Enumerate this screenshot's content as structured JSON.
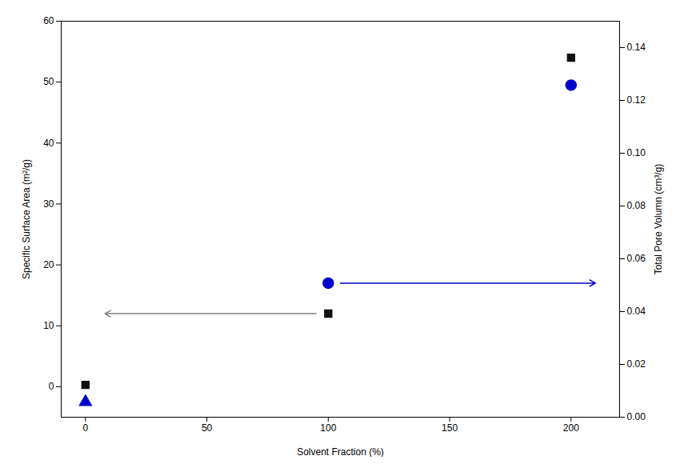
{
  "chart_data": {
    "type": "scatter",
    "xlabel": "Solvent Fraction (%)",
    "ylabel": "Specific Surface Area (m²/g)",
    "y2label": "Total Pore Volumn (cm³/g)",
    "xlim": [
      -10,
      220
    ],
    "xticks": [
      0,
      50,
      100,
      150,
      200
    ],
    "ylim": [
      -5,
      60
    ],
    "yticks": [
      0,
      10,
      20,
      30,
      40,
      50,
      60
    ],
    "y2lim": [
      0.0,
      0.15
    ],
    "y2ticks": [
      {
        "value": 0.0,
        "label": "0.00"
      },
      {
        "value": 0.02,
        "label": "0.02"
      },
      {
        "value": 0.04,
        "label": "0.04"
      },
      {
        "value": 0.06,
        "label": "0.06"
      },
      {
        "value": 0.08,
        "label": "0.08"
      },
      {
        "value": 0.1,
        "label": "0.10"
      },
      {
        "value": 0.12,
        "label": "0.12"
      },
      {
        "value": 0.14,
        "label": "0.14"
      }
    ],
    "grid": false,
    "series": [
      {
        "color": "#111111",
        "marker": "square",
        "x": [
          0,
          100,
          200
        ],
        "values": [
          0.3,
          12.0,
          54.0
        ]
      },
      {
        "color": "#0000cc",
        "marker": "triangle",
        "x": [
          0
        ],
        "values": [
          -2.5
        ]
      },
      {
        "color": "#0000cc",
        "marker": "circle",
        "x": [
          100,
          200
        ],
        "values": [
          17.0,
          49.5
        ]
      }
    ],
    "annotations": [
      {
        "type": "arrow",
        "x": 95,
        "x_end": 8,
        "y": 12.0,
        "color": "gray"
      },
      {
        "type": "arrow",
        "x": 105,
        "x_end": 210,
        "y": 17.0,
        "color": "#0000cc"
      }
    ]
  }
}
